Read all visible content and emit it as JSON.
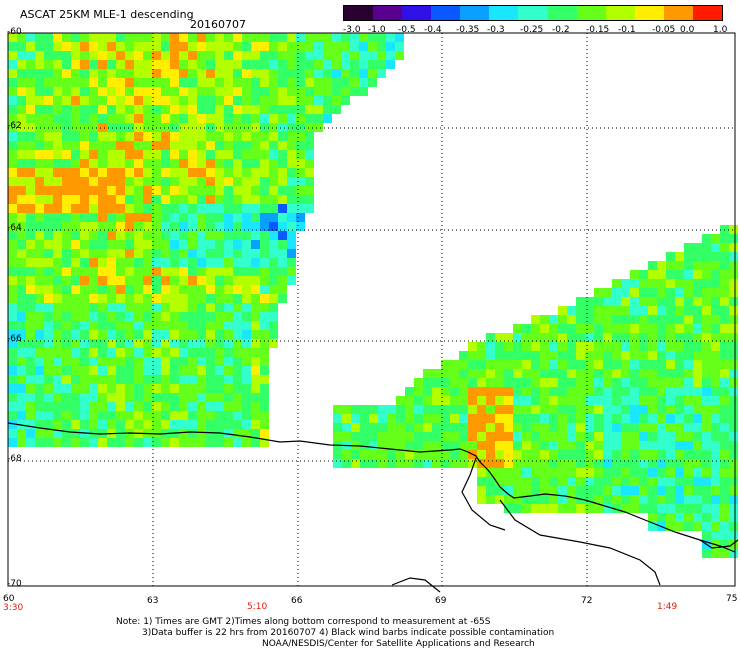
{
  "header": {
    "title": "ASCAT 25KM MLE-1 descending",
    "date": "20160707"
  },
  "colorbar": {
    "labels": [
      "-3.0",
      "-1.0",
      "-0.5",
      "-0.4",
      "-0.35",
      "-0.3",
      "-0.25",
      "-0.2",
      "-0.15",
      "-0.1",
      "-0.05",
      "0.0",
      "1.0"
    ],
    "colors": [
      "#2a0030",
      "#5a0090",
      "#2f10e6",
      "#0a58ff",
      "#0aa0ff",
      "#19e6ff",
      "#33ffcc",
      "#33ff66",
      "#66ff19",
      "#b3ff00",
      "#ffee00",
      "#ff9900",
      "#ff1a00"
    ]
  },
  "map": {
    "lat_labels": [
      "-60",
      "-62",
      "-64",
      "-66",
      "-68",
      "-70"
    ],
    "lon_labels": [
      "60",
      "63",
      "66",
      "69",
      "72",
      "75"
    ],
    "time_labels": [
      "3:30",
      "5:10",
      "1:49"
    ]
  },
  "footer": {
    "line1": "Note: 1) Times are GMT 2)Times along bottom correspond to measurement at -65S",
    "line2": "3)Data buffer is 22 hrs from 20160707 4) Black wind barbs indicate possible contamination",
    "line3": "NOAA/NESDIS/Center for Satellite Applications and Research"
  }
}
